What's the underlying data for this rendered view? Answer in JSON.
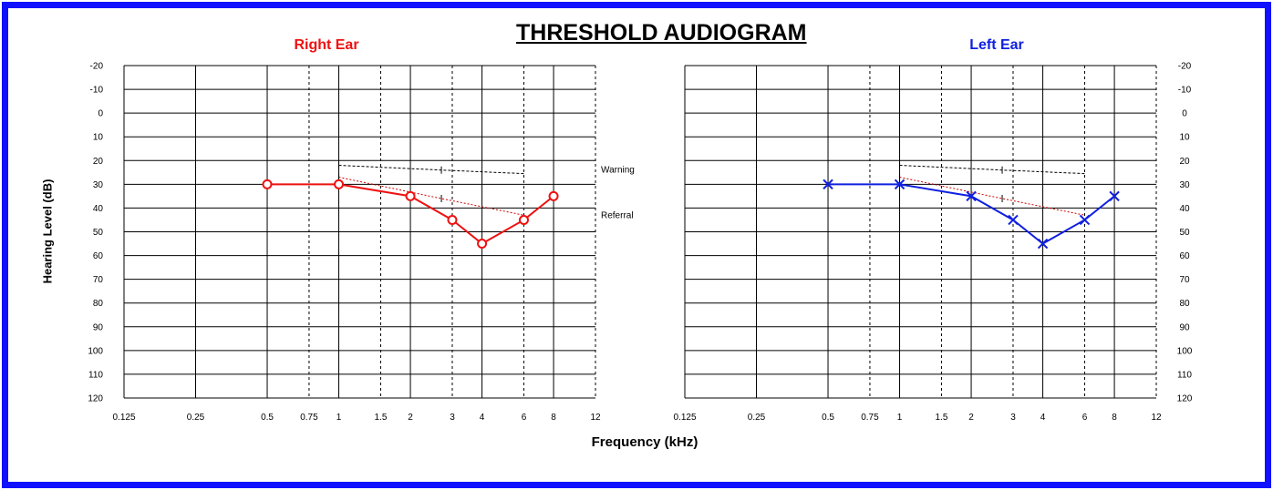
{
  "title": "THRESHOLD AUDIOGRAM",
  "ylabel": "Hearing Level (dB)",
  "xlabel": "Frequency (kHz)",
  "reference_labels": {
    "warning": "Warning",
    "referral": "Referral"
  },
  "colors": {
    "frame": "#1010ff",
    "right_ear": "#ee1111",
    "left_ear": "#1020e0",
    "reference": "#cc0000"
  },
  "chart_data": [
    {
      "type": "line",
      "title": "Right Ear",
      "xscale": "log",
      "xticks": [
        0.125,
        0.25,
        0.5,
        0.75,
        1,
        1.5,
        2,
        3,
        4,
        6,
        8,
        12
      ],
      "xtick_labels": [
        "0.125",
        "0.25",
        "0.5",
        "0.75",
        "1",
        "1.5",
        "2",
        "3",
        "4",
        "6",
        "8",
        "12"
      ],
      "yticks": [
        -20,
        -10,
        0,
        10,
        20,
        30,
        40,
        50,
        60,
        70,
        80,
        90,
        100,
        110,
        120
      ],
      "ylim": [
        -20,
        120
      ],
      "y_inverted": true,
      "grid": true,
      "marker": "circle",
      "series": [
        {
          "x": [
            0.5,
            1,
            2,
            3,
            4,
            6,
            8
          ],
          "y": [
            30,
            30,
            35,
            45,
            55,
            45,
            35
          ]
        }
      ],
      "reference_lines": [
        {
          "name": "Warning",
          "x": [
            1,
            2.7,
            6
          ],
          "y": [
            22,
            24,
            25.5
          ]
        },
        {
          "name": "Referral",
          "x": [
            1,
            2.7,
            6
          ],
          "y": [
            27,
            36,
            43
          ]
        }
      ]
    },
    {
      "type": "line",
      "title": "Left Ear",
      "xscale": "log",
      "xticks": [
        0.125,
        0.25,
        0.5,
        0.75,
        1,
        1.5,
        2,
        3,
        4,
        6,
        8,
        12
      ],
      "xtick_labels": [
        "0.125",
        "0.25",
        "0.5",
        "0.75",
        "1",
        "1.5",
        "2",
        "3",
        "4",
        "6",
        "8",
        "12"
      ],
      "yticks": [
        -20,
        -10,
        0,
        10,
        20,
        30,
        40,
        50,
        60,
        70,
        80,
        90,
        100,
        110,
        120
      ],
      "ylim": [
        -20,
        120
      ],
      "y_inverted": true,
      "grid": true,
      "marker": "cross",
      "series": [
        {
          "x": [
            0.5,
            1,
            2,
            3,
            4,
            6,
            8
          ],
          "y": [
            30,
            30,
            35,
            45,
            55,
            45,
            35
          ]
        }
      ],
      "reference_lines": [
        {
          "name": "Warning",
          "x": [
            1,
            2.7,
            6
          ],
          "y": [
            22,
            24,
            25.5
          ]
        },
        {
          "name": "Referral",
          "x": [
            1,
            2.7,
            6
          ],
          "y": [
            27,
            36,
            43
          ]
        }
      ]
    }
  ]
}
